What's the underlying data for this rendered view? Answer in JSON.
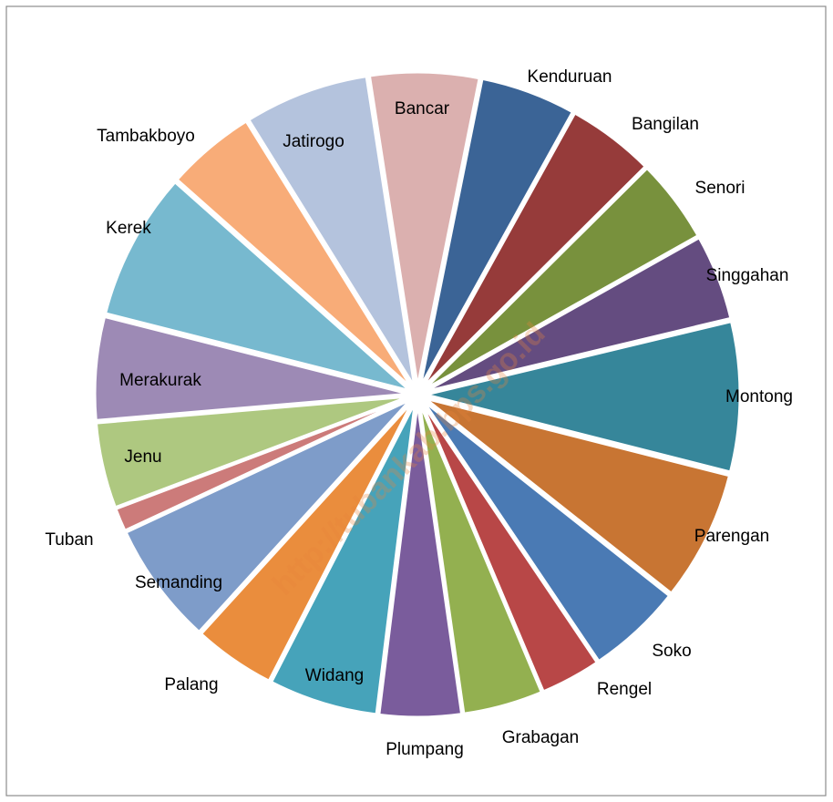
{
  "chart_data": {
    "type": "pie",
    "categories": [
      "Bancar",
      "Kenduruan",
      "Bangilan",
      "Senori",
      "Singgahan",
      "Montong",
      "Parengan",
      "Soko",
      "Rengel",
      "Grabagan",
      "Plumpang",
      "Widang",
      "Palang",
      "Semanding",
      "Tuban",
      "Jenu",
      "Merakurak",
      "Kerek",
      "Tambakboyo",
      "Jatirogo"
    ],
    "values": [
      5.6,
      4.9,
      4.5,
      4.3,
      4.4,
      7.7,
      6.7,
      4.9,
      3.1,
      4.1,
      4.2,
      5.6,
      4.2,
      6.3,
      1.2,
      4.4,
      5.3,
      7.6,
      4.6,
      6.4
    ],
    "colors": [
      "#dbb0af",
      "#3b6496",
      "#963b3a",
      "#78913d",
      "#644c80",
      "#36869a",
      "#c87533",
      "#4a7ab4",
      "#b84747",
      "#93b050",
      "#7a5c9c",
      "#46a3ba",
      "#ea8d3d",
      "#7e9cc9",
      "#cc7b7a",
      "#aec880",
      "#9d8ab5",
      "#77b9cf",
      "#f8ac78",
      "#b4c3dd"
    ],
    "watermark": "http://tubankab.bps.go.id"
  }
}
